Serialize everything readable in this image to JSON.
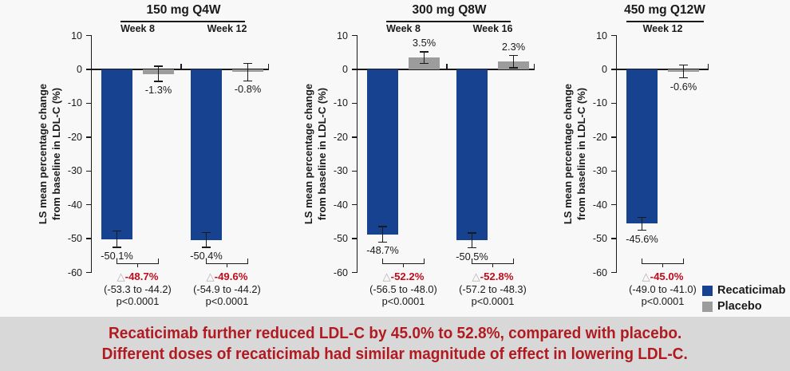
{
  "banner": {
    "line1": "Recaticimab further reduced LDL-C by 45.0% to 52.8%, compared with placebo.",
    "line2": "Different doses of recaticimab had similar magnitude of effect in lowering LDL-C."
  },
  "colors": {
    "recaticimab": "#17428f",
    "placebo": "#9c9c9c",
    "axis": "#1a1a1a",
    "annotation_red": "#c00c1c",
    "triangle_gray": "#b0b0b0",
    "banner_red": "#b11a21",
    "banner_bg": "#d8d8d8",
    "background": "#f8f8f8"
  },
  "legend": {
    "items": [
      {
        "label": "Recaticimab",
        "color": "#17428f"
      },
      {
        "label": "Placebo",
        "color": "#9c9c9c"
      }
    ]
  },
  "chart_data": {
    "type": "bar",
    "ylabel_lines": [
      "LS mean percentage change",
      "from baseline in LDL-C (%)"
    ],
    "ylim": [
      -60,
      10
    ],
    "yticks": [
      10,
      0,
      -10,
      -20,
      -30,
      -40,
      -50,
      -60
    ],
    "series_names": [
      "Recaticimab",
      "Placebo"
    ],
    "delta_symbol": "△",
    "panels": [
      {
        "title": "150 mg Q4W",
        "groups": [
          {
            "week": "Week 8",
            "recaticimab": -50.1,
            "recaticimab_label": "-50.1%",
            "recaticimab_err": 2.4,
            "placebo": -1.3,
            "placebo_label": "-1.3%",
            "placebo_err": 2.2,
            "diff_label": "-48.7%",
            "ci": "(-53.3 to -44.2)",
            "p": "p<0.0001"
          },
          {
            "week": "Week 12",
            "recaticimab": -50.4,
            "recaticimab_label": "-50.4%",
            "recaticimab_err": 2.2,
            "placebo": -0.8,
            "placebo_label": "-0.8%",
            "placebo_err": 2.6,
            "diff_label": "-49.6%",
            "ci": "(-54.9 to -44.2)",
            "p": "p<0.0001"
          }
        ]
      },
      {
        "title": "300 mg Q8W",
        "groups": [
          {
            "week": "Week 8",
            "recaticimab": -48.7,
            "recaticimab_label": "-48.7%",
            "recaticimab_err": 2.3,
            "placebo": 3.5,
            "placebo_label": "3.5%",
            "placebo_err": 1.7,
            "diff_label": "-52.2%",
            "ci": "(-56.5 to -48.0)",
            "p": "p<0.0001"
          },
          {
            "week": "Week 16",
            "recaticimab": -50.5,
            "recaticimab_label": "-50.5%",
            "recaticimab_err": 2.2,
            "placebo": 2.3,
            "placebo_label": "2.3%",
            "placebo_err": 1.8,
            "diff_label": "-52.8%",
            "ci": "(-57.2 to -48.3)",
            "p": "p<0.0001"
          }
        ]
      },
      {
        "title": "450 mg Q12W",
        "groups": [
          {
            "week": "Week 12",
            "recaticimab": -45.6,
            "recaticimab_label": "-45.6%",
            "recaticimab_err": 1.9,
            "placebo": -0.6,
            "placebo_label": "-0.6%",
            "placebo_err": 1.9,
            "diff_label": "-45.0%",
            "ci": "(-49.0 to -41.0)",
            "p": "p<0.0001"
          }
        ]
      }
    ]
  }
}
